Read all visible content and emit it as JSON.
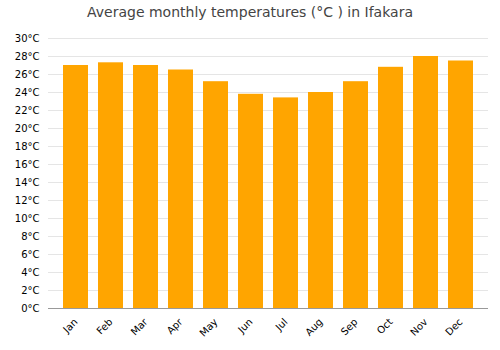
{
  "chart_data": {
    "type": "bar",
    "title": "Average monthly temperatures (°C ) in Ifakara",
    "categories": [
      "Jan",
      "Feb",
      "Mar",
      "Apr",
      "May",
      "Jun",
      "Jul",
      "Aug",
      "Sep",
      "Oct",
      "Nov",
      "Dec"
    ],
    "values": [
      27.0,
      27.3,
      27.0,
      26.5,
      25.2,
      23.8,
      23.4,
      24.0,
      25.2,
      26.8,
      28.0,
      27.5
    ],
    "color": "#FFA500",
    "ylim": [
      0,
      30
    ],
    "yticks": [
      {
        "value": 0,
        "label": "0°C"
      },
      {
        "value": 2,
        "label": "2°C"
      },
      {
        "value": 4,
        "label": "4°C"
      },
      {
        "value": 6,
        "label": "6°C"
      },
      {
        "value": 8,
        "label": "8°C"
      },
      {
        "value": 10,
        "label": "10°C"
      },
      {
        "value": 12,
        "label": "12°C"
      },
      {
        "value": 14,
        "label": "14°C"
      },
      {
        "value": 16,
        "label": "16°C"
      },
      {
        "value": 18,
        "label": "18°C"
      },
      {
        "value": 20,
        "label": "20°C"
      },
      {
        "value": 22,
        "label": "22°C"
      },
      {
        "value": 24,
        "label": "24°C"
      },
      {
        "value": 26,
        "label": "26°C"
      },
      {
        "value": 28,
        "label": "28°C"
      },
      {
        "value": 30,
        "label": "30°C"
      }
    ],
    "grid": true
  }
}
